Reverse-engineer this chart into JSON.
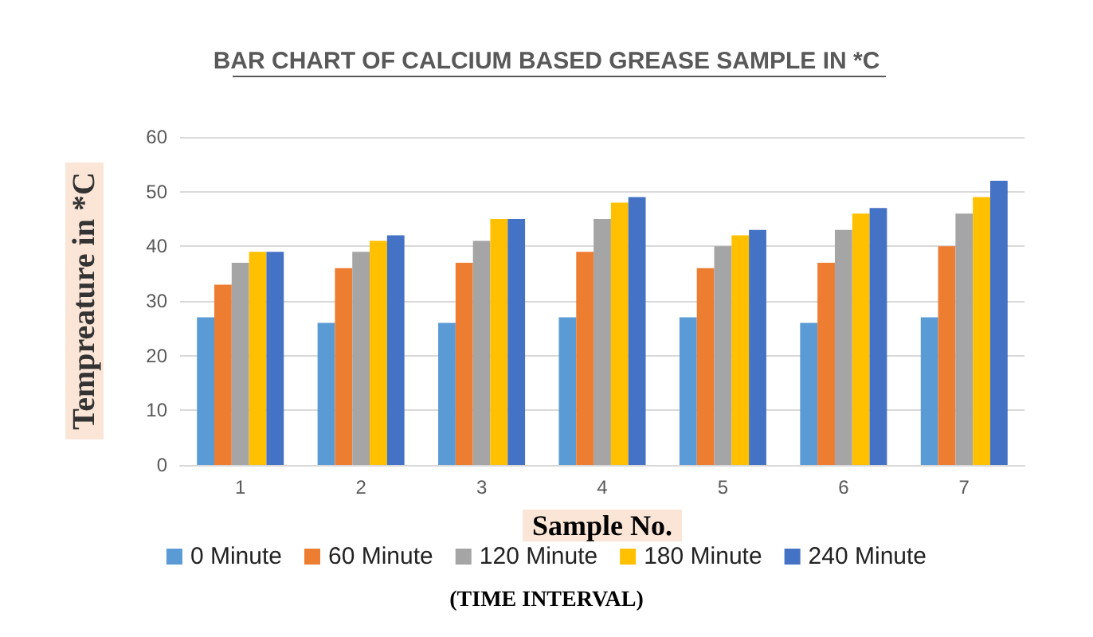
{
  "chart_data": {
    "type": "bar",
    "title": "BAR CHART OF CALCIUM BASED GREASE SAMPLE IN *C",
    "xlabel": "Sample No.",
    "ylabel": "Tempreature in *C",
    "annotations": [
      "(TIME INTERVAL)"
    ],
    "categories": [
      "1",
      "2",
      "3",
      "4",
      "5",
      "6",
      "7"
    ],
    "series": [
      {
        "name": "0 Minute",
        "color": "#5b9bd5",
        "values": [
          27,
          26,
          26,
          27,
          27,
          26,
          27
        ]
      },
      {
        "name": "60 Minute",
        "color": "#ed7d31",
        "values": [
          33,
          36,
          37,
          39,
          36,
          37,
          40
        ]
      },
      {
        "name": "120 Minute",
        "color": "#a5a5a5",
        "values": [
          37,
          39,
          41,
          45,
          40,
          43,
          46
        ]
      },
      {
        "name": "180 Minute",
        "color": "#ffc000",
        "values": [
          39,
          41,
          45,
          48,
          42,
          46,
          49
        ]
      },
      {
        "name": "240 Minute",
        "color": "#4472c4",
        "values": [
          39,
          42,
          45,
          49,
          43,
          47,
          52
        ]
      }
    ],
    "ylim": [
      0,
      60
    ],
    "yticks": [
      0,
      10,
      20,
      30,
      40,
      50,
      60
    ],
    "grid": "y",
    "legend": "bottom"
  }
}
